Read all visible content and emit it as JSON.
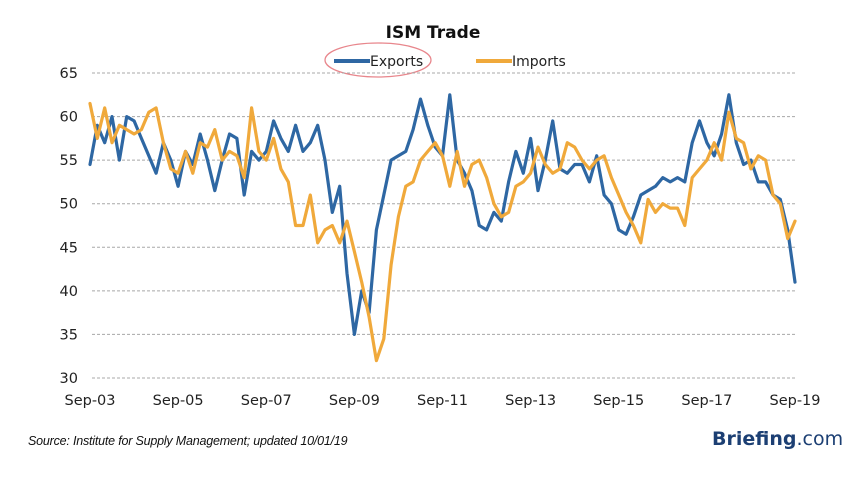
{
  "chart_data": {
    "type": "line",
    "title": "ISM Trade",
    "xlabel": "",
    "ylabel": "",
    "ylim": [
      30,
      65
    ],
    "yticks": [
      30,
      35,
      40,
      45,
      50,
      55,
      60,
      65
    ],
    "xtick_labels": [
      "Sep-03",
      "Sep-05",
      "Sep-07",
      "Sep-09",
      "Sep-11",
      "Sep-13",
      "Sep-15",
      "Sep-17",
      "Sep-19"
    ],
    "x_start": "Sep-03",
    "x_end": "Sep-19",
    "x_step_months": 2,
    "grid": true,
    "legend_position": "top-center",
    "highlighted_legend_entry": "Exports",
    "series": [
      {
        "name": "Exports",
        "color": "#2e67a3",
        "values": [
          54.5,
          59.0,
          57.0,
          60.0,
          55.0,
          60.0,
          59.5,
          57.5,
          55.5,
          53.5,
          57.0,
          55.0,
          52.0,
          56.0,
          54.5,
          58.0,
          55.0,
          51.5,
          55.0,
          58.0,
          57.5,
          51.0,
          56.0,
          55.0,
          56.0,
          59.5,
          57.5,
          56.0,
          59.0,
          56.0,
          57.0,
          59.0,
          55.0,
          49.0,
          52.0,
          42.0,
          35.0,
          40.0,
          37.5,
          47.0,
          51.0,
          55.0,
          55.5,
          56.0,
          58.5,
          62.0,
          59.0,
          56.5,
          55.5,
          62.5,
          55.0,
          53.5,
          51.5,
          47.5,
          47.0,
          49.0,
          48.0,
          52.5,
          56.0,
          53.5,
          57.5,
          51.5,
          55.0,
          59.5,
          54.0,
          53.5,
          54.5,
          54.5,
          52.5,
          55.5,
          51.0,
          50.0,
          47.0,
          46.5,
          48.5,
          51.0,
          51.5,
          52.0,
          53.0,
          52.5,
          53.0,
          52.5,
          57.0,
          59.5,
          57.0,
          55.5,
          58.0,
          62.5,
          57.0,
          54.5,
          55.0,
          52.5,
          52.5,
          51.0,
          50.5,
          47.0,
          41.0
        ]
      },
      {
        "name": "Imports",
        "color": "#f0a93b",
        "values": [
          61.5,
          57.5,
          61.0,
          57.0,
          59.0,
          58.5,
          58.0,
          58.5,
          60.5,
          61.0,
          57.0,
          54.0,
          53.5,
          56.0,
          53.5,
          57.0,
          56.5,
          58.5,
          55.0,
          56.0,
          55.5,
          53.0,
          61.0,
          56.0,
          55.0,
          57.5,
          54.0,
          52.5,
          47.5,
          47.5,
          51.0,
          45.5,
          47.0,
          47.5,
          45.5,
          48.0,
          44.5,
          41.0,
          37.0,
          32.0,
          34.5,
          43.0,
          48.5,
          52.0,
          52.5,
          55.0,
          56.0,
          57.0,
          55.5,
          52.0,
          56.0,
          52.0,
          54.5,
          55.0,
          53.0,
          50.0,
          48.5,
          49.0,
          52.0,
          52.5,
          53.5,
          56.5,
          54.5,
          53.5,
          54.0,
          57.0,
          56.5,
          55.0,
          54.0,
          55.0,
          55.5,
          53.0,
          51.0,
          49.0,
          47.5,
          45.5,
          50.5,
          49.0,
          50.0,
          49.5,
          49.5,
          47.5,
          53.0,
          54.0,
          55.0,
          57.0,
          55.0,
          60.5,
          57.5,
          57.0,
          54.0,
          55.5,
          55.0,
          51.0,
          50.0,
          46.0,
          48.0
        ]
      }
    ]
  },
  "footer": {
    "source": "Source: Institute for Supply Management; updated 10/01/19",
    "brand_main": "Briefing",
    "brand_suffix": ".com"
  }
}
